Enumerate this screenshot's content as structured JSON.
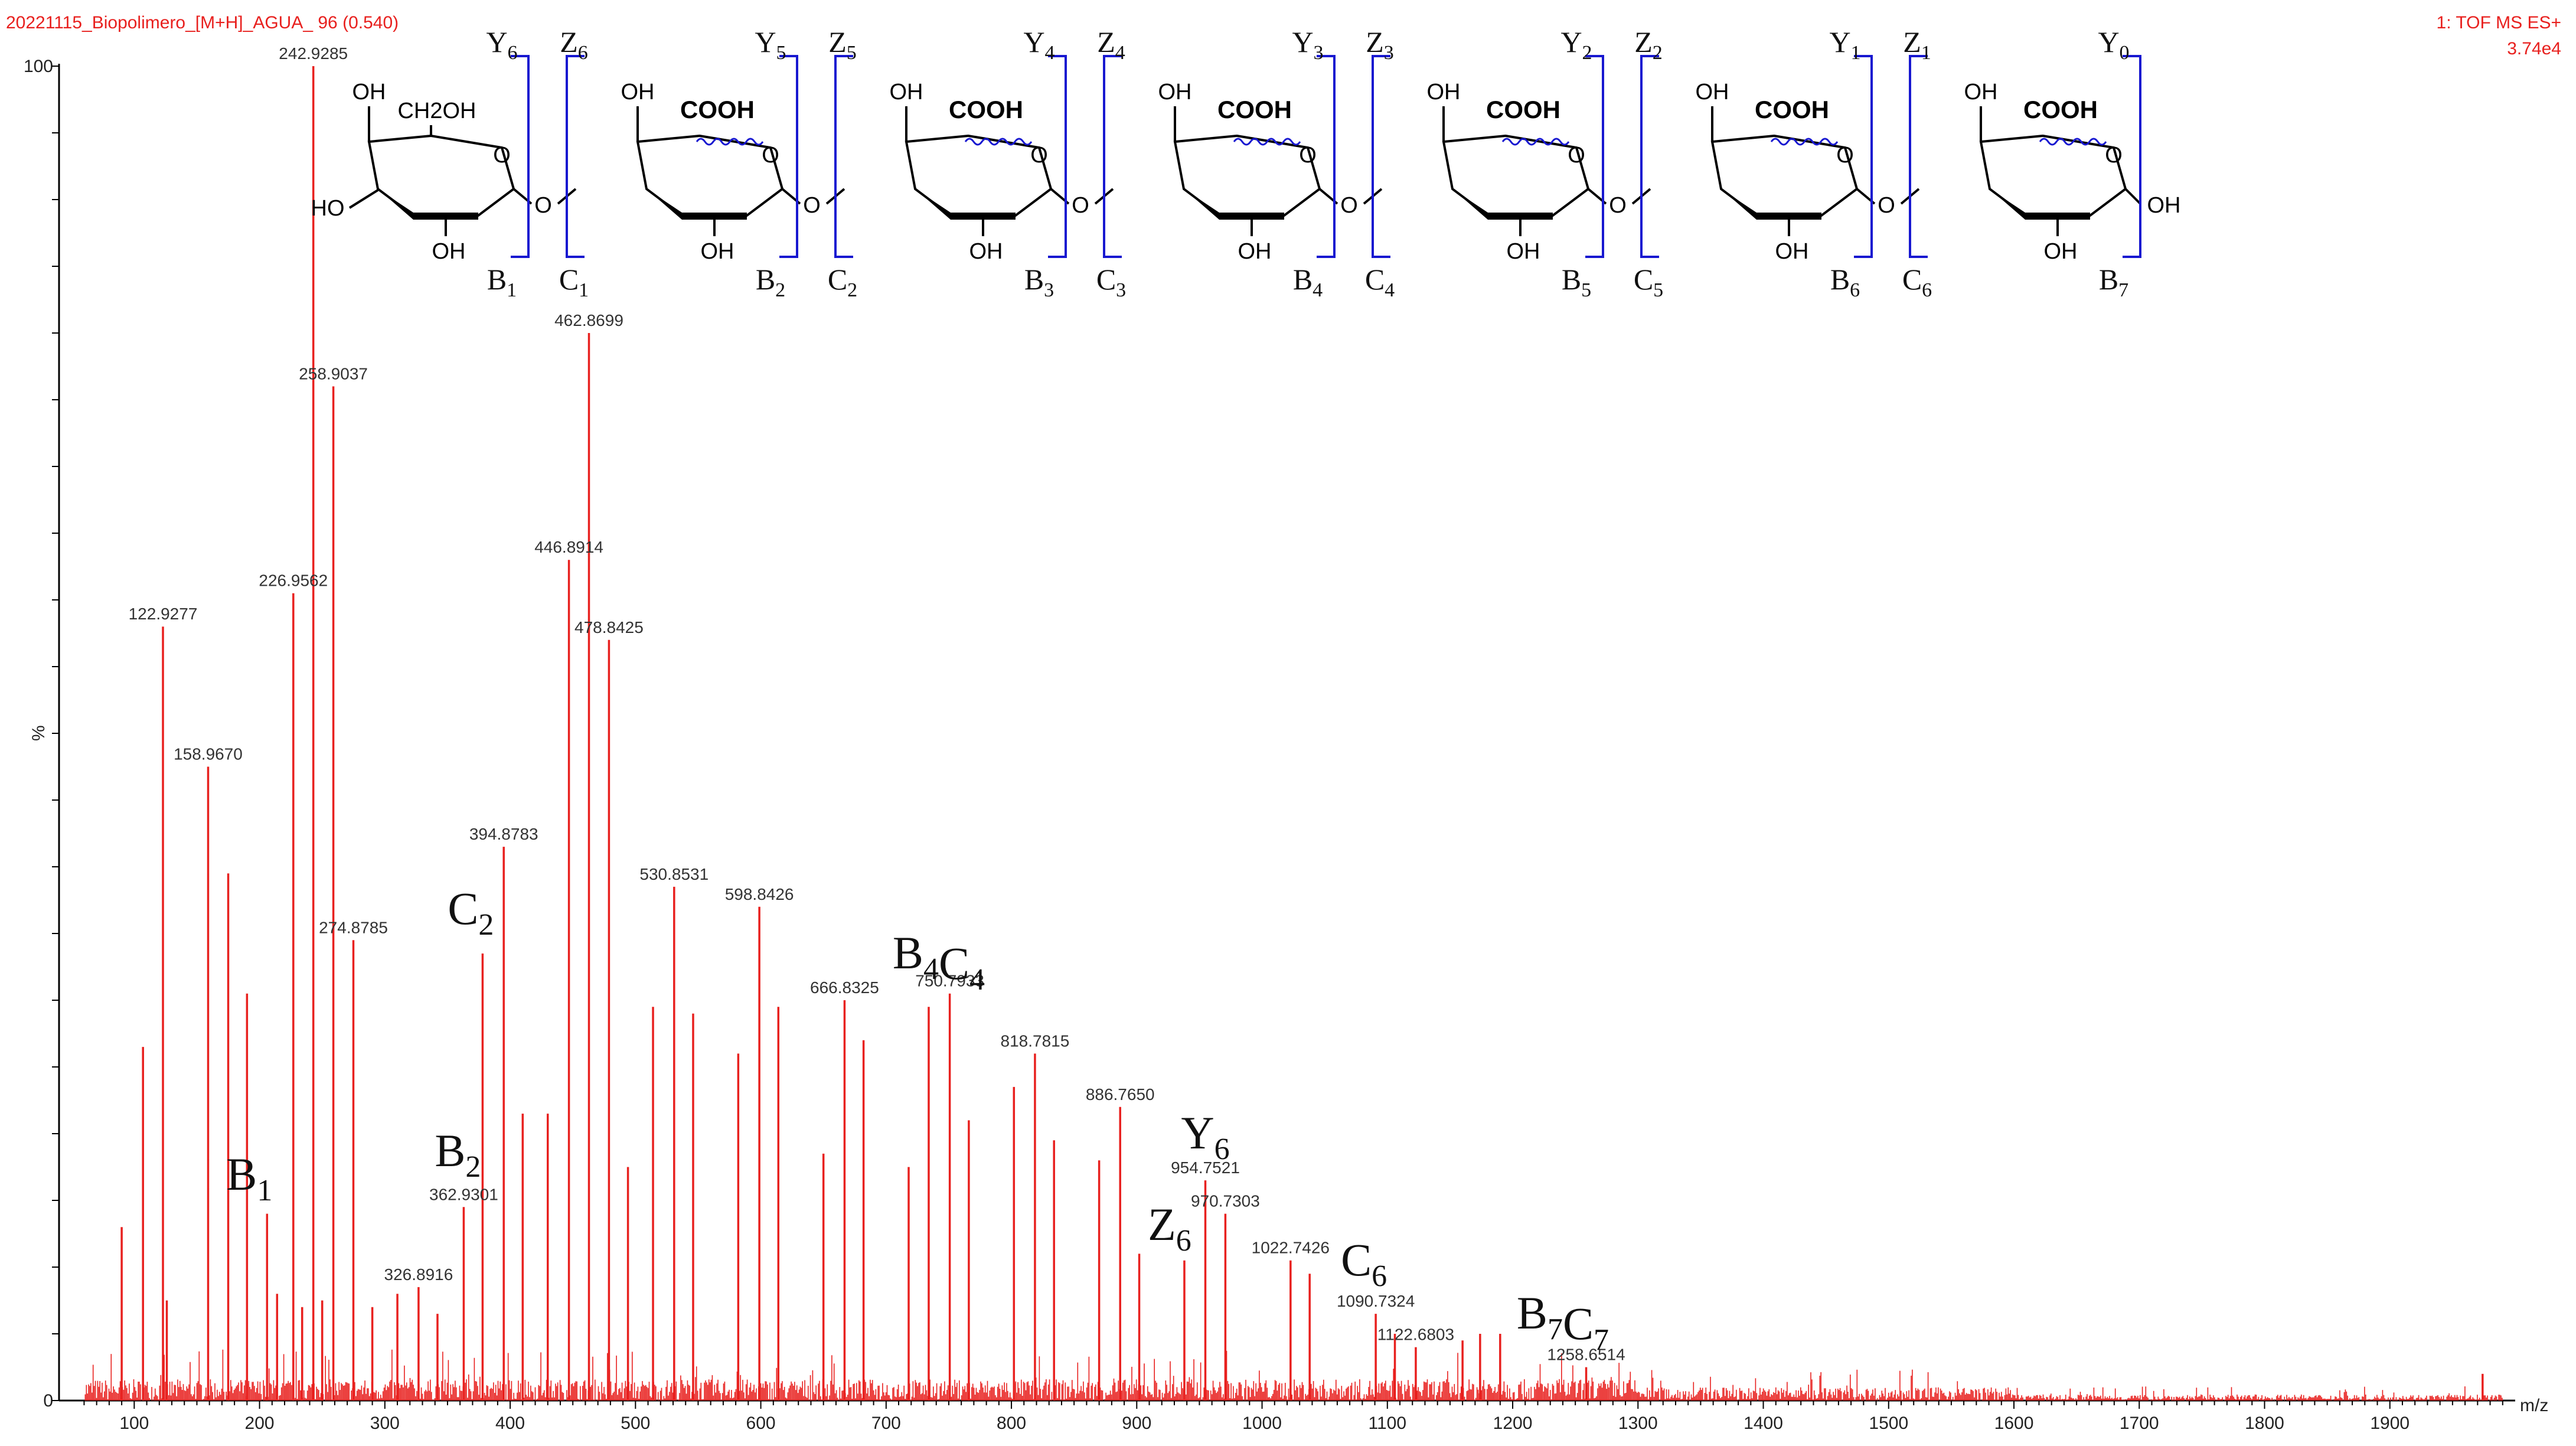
{
  "header": {
    "title": "20221115_Biopolimero_[M+H]_AGUA_ 96 (0.540)",
    "mode": "1: TOF MS ES+",
    "intensity": "3.74e4"
  },
  "chart_data": {
    "type": "bar",
    "title": "20221115_Biopolimero_[M+H]_AGUA_ 96 (0.540)",
    "xlabel": "m/z",
    "ylabel": "%",
    "xlim": [
      40,
      2000
    ],
    "ylim": [
      0,
      100
    ],
    "y_ticks": [
      "0",
      "100"
    ],
    "x_ticks": [
      "100",
      "200",
      "300",
      "400",
      "500",
      "600",
      "700",
      "800",
      "900",
      "1000",
      "1100",
      "1200",
      "1300",
      "1400",
      "1500",
      "1600",
      "1700",
      "1800",
      "1900"
    ],
    "x_tick_values": [
      100,
      200,
      300,
      400,
      500,
      600,
      700,
      800,
      900,
      1000,
      1100,
      1200,
      1300,
      1400,
      1500,
      1600,
      1700,
      1800,
      1900
    ],
    "labeled_peaks": [
      {
        "mz": 122.9277,
        "label": "122.9277",
        "intensity": 58.0
      },
      {
        "mz": 158.967,
        "label": "158.9670",
        "intensity": 47.5
      },
      {
        "mz": 226.9562,
        "label": "226.9562",
        "intensity": 60.5
      },
      {
        "mz": 242.9285,
        "label": "242.9285",
        "intensity": 100.0
      },
      {
        "mz": 258.9037,
        "label": "258.9037",
        "intensity": 76.0
      },
      {
        "mz": 274.8785,
        "label": "274.8785",
        "intensity": 34.5
      },
      {
        "mz": 326.8916,
        "label": "326.8916",
        "intensity": 8.5
      },
      {
        "mz": 362.9301,
        "label": "362.9301",
        "intensity": 14.5
      },
      {
        "mz": 394.8783,
        "label": "394.8783",
        "intensity": 41.5
      },
      {
        "mz": 446.8914,
        "label": "446.8914",
        "intensity": 63.0
      },
      {
        "mz": 462.8699,
        "label": "462.8699",
        "intensity": 80.0
      },
      {
        "mz": 478.8425,
        "label": "478.8425",
        "intensity": 57.0
      },
      {
        "mz": 530.8531,
        "label": "530.8531",
        "intensity": 38.5
      },
      {
        "mz": 598.8426,
        "label": "598.8426",
        "intensity": 37.0
      },
      {
        "mz": 666.8325,
        "label": "666.8325",
        "intensity": 30.0
      },
      {
        "mz": 750.7933,
        "label": "750.7933",
        "intensity": 30.5
      },
      {
        "mz": 818.7815,
        "label": "818.7815",
        "intensity": 26.0
      },
      {
        "mz": 886.765,
        "label": "886.7650",
        "intensity": 22.0
      },
      {
        "mz": 954.7521,
        "label": "954.7521",
        "intensity": 16.5
      },
      {
        "mz": 970.7303,
        "label": "970.7303",
        "intensity": 14.0
      },
      {
        "mz": 1022.7426,
        "label": "1022.7426",
        "intensity": 10.5
      },
      {
        "mz": 1090.7324,
        "label": "1090.7324",
        "intensity": 6.5
      },
      {
        "mz": 1122.6803,
        "label": "1122.6803",
        "intensity": 4.0
      },
      {
        "mz": 1258.6514,
        "label": "1258.6514",
        "intensity": 2.5
      }
    ],
    "other_peaks": [
      {
        "mz": 90,
        "intensity": 13.0
      },
      {
        "mz": 107,
        "intensity": 26.5
      },
      {
        "mz": 126,
        "intensity": 7.5
      },
      {
        "mz": 175,
        "intensity": 39.5
      },
      {
        "mz": 190,
        "intensity": 30.5
      },
      {
        "mz": 206,
        "intensity": 14.0
      },
      {
        "mz": 214,
        "intensity": 8.0
      },
      {
        "mz": 234,
        "intensity": 7.0
      },
      {
        "mz": 250,
        "intensity": 7.5
      },
      {
        "mz": 290,
        "intensity": 7.0
      },
      {
        "mz": 310,
        "intensity": 8.0
      },
      {
        "mz": 342,
        "intensity": 6.5
      },
      {
        "mz": 378,
        "intensity": 33.5
      },
      {
        "mz": 410,
        "intensity": 21.5
      },
      {
        "mz": 430,
        "intensity": 21.5
      },
      {
        "mz": 494,
        "intensity": 17.5
      },
      {
        "mz": 514,
        "intensity": 29.5
      },
      {
        "mz": 546,
        "intensity": 29.0
      },
      {
        "mz": 582,
        "intensity": 26.0
      },
      {
        "mz": 614,
        "intensity": 29.5
      },
      {
        "mz": 650,
        "intensity": 18.5
      },
      {
        "mz": 682,
        "intensity": 27.0
      },
      {
        "mz": 718,
        "intensity": 17.5
      },
      {
        "mz": 734,
        "intensity": 29.5
      },
      {
        "mz": 766,
        "intensity": 21.0
      },
      {
        "mz": 802,
        "intensity": 23.5
      },
      {
        "mz": 834,
        "intensity": 19.5
      },
      {
        "mz": 870,
        "intensity": 18.0
      },
      {
        "mz": 902,
        "intensity": 11.0
      },
      {
        "mz": 938,
        "intensity": 10.5
      },
      {
        "mz": 1038,
        "intensity": 9.5
      },
      {
        "mz": 1106,
        "intensity": 5.0
      },
      {
        "mz": 1160,
        "intensity": 4.5
      },
      {
        "mz": 1174,
        "intensity": 5.0
      },
      {
        "mz": 1190,
        "intensity": 5.0
      },
      {
        "mz": 1974,
        "intensity": 2.0
      }
    ],
    "ion_annotations": [
      {
        "base": "B",
        "sub": "1",
        "mz": 206
      },
      {
        "base": "B",
        "sub": "2",
        "mz": 362.9301
      },
      {
        "base": "C",
        "sub": "2",
        "mz": 378
      },
      {
        "base": "B4C4",
        "label_parts": [
          [
            "B",
            "4"
          ],
          [
            "C",
            "4"
          ]
        ],
        "mz": 734
      },
      {
        "base": "Y",
        "sub": "6",
        "mz": 954.7521
      },
      {
        "base": "Z",
        "sub": "6",
        "mz": 938
      },
      {
        "base": "C",
        "sub": "6",
        "mz": 1090.7324
      },
      {
        "base": "B7C7",
        "label_parts": [
          [
            "B",
            "7"
          ],
          [
            "C",
            "7"
          ]
        ],
        "mz": 1240
      }
    ]
  },
  "structure": {
    "substituents": {
      "ch2oh": "CH2OH",
      "cooh": "COOH",
      "oh": "OH",
      "ho": "HO",
      "o": "O"
    },
    "top_fragments": [
      [
        "Y",
        "6"
      ],
      [
        "Z",
        "6"
      ],
      [
        "Y",
        "5"
      ],
      [
        "Z",
        "5"
      ],
      [
        "Y",
        "4"
      ],
      [
        "Z",
        "4"
      ],
      [
        "Y",
        "3"
      ],
      [
        "Z",
        "3"
      ],
      [
        "Y",
        "2"
      ],
      [
        "Z",
        "2"
      ],
      [
        "Y",
        "1"
      ],
      [
        "Z",
        "1"
      ],
      [
        "Y",
        "0"
      ]
    ],
    "bottom_fragments": [
      [
        "B",
        "1"
      ],
      [
        "C",
        "1"
      ],
      [
        "B",
        "2"
      ],
      [
        "C",
        "2"
      ],
      [
        "B",
        "3"
      ],
      [
        "C",
        "3"
      ],
      [
        "B",
        "4"
      ],
      [
        "C",
        "4"
      ],
      [
        "B",
        "5"
      ],
      [
        "C",
        "5"
      ],
      [
        "B",
        "6"
      ],
      [
        "C",
        "6"
      ],
      [
        "B",
        "7"
      ]
    ]
  },
  "colors": {
    "spectrum": "#e8201e",
    "fragment_brackets": "#1818d0",
    "axis": "#000000"
  }
}
